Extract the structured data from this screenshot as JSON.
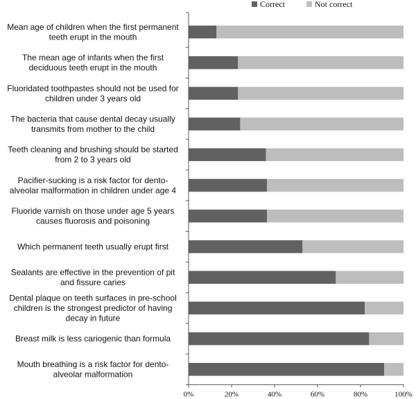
{
  "chart_data": {
    "type": "bar",
    "orientation": "horizontal",
    "stacked": true,
    "categories": [
      [
        "Mean age of children when the first permanent",
        "teeth erupt in the mouth"
      ],
      [
        "The mean age of infants when the first",
        "deciduous teeth erupt in the mouth"
      ],
      [
        "Fluoridated toothpastes should not be used for",
        "children under 3 years old"
      ],
      [
        "The bacteria that cause dental decay usually",
        "transmits from mother to the child"
      ],
      [
        "Teeth cleaning and brushing should be started",
        "from 2 to 3 years old"
      ],
      [
        "Pacifier-sucking is a risk factor for dento-",
        "alveolar malformation in children under age 4"
      ],
      [
        "Fluoride varnish on those under age 5 years",
        "causes fluorosis and poisoning"
      ],
      [
        "Which permanent teeth usually erupt first"
      ],
      [
        "Sealants are effective in the prevention of pit",
        "and fissure caries"
      ],
      [
        "Dental plaque on teeth surfaces in pre-school",
        "children is the strongest predictor of having",
        "decay in future"
      ],
      [
        "Breast milk is less cariogenic than formula"
      ],
      [
        "Mouth breathing is a risk factor for dento-",
        "alveolar malformation"
      ]
    ],
    "series": [
      {
        "name": "Correct",
        "color": "#616161",
        "values": [
          13,
          23,
          23,
          24,
          36,
          36.5,
          36.5,
          53,
          68.5,
          82,
          84,
          91
        ]
      },
      {
        "name": "Not correct",
        "color": "#bdbdbd",
        "values": [
          87,
          77,
          77,
          76,
          64,
          63.5,
          63.5,
          47,
          31.5,
          18,
          16,
          9
        ]
      }
    ],
    "xlim": [
      0,
      100
    ],
    "xticks": [
      "0%",
      "20%",
      "40%",
      "60%",
      "80%",
      "100%"
    ],
    "legend": "top-right",
    "grid": false
  }
}
